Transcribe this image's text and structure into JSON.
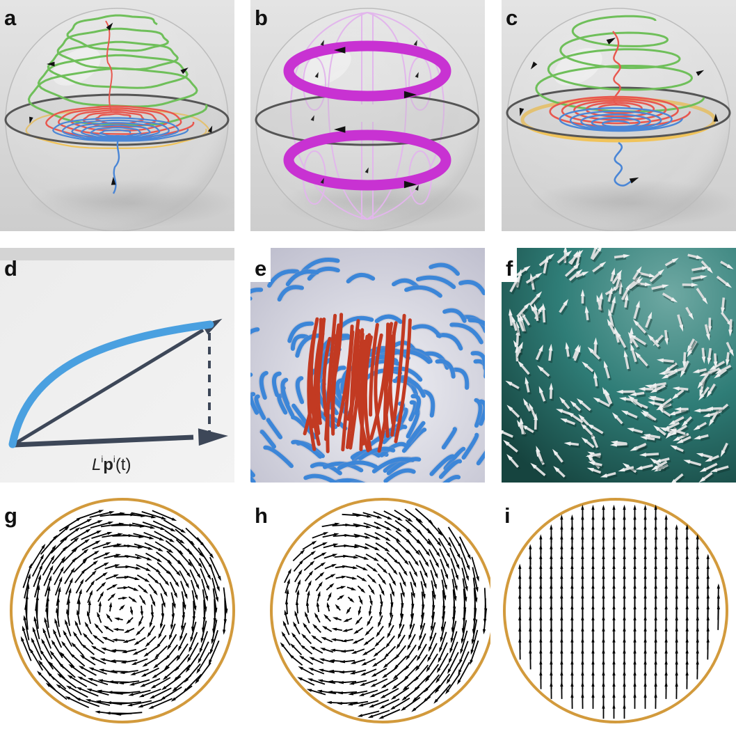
{
  "figure": {
    "panels": [
      {
        "id": "a",
        "label": "a",
        "kind": "sphere-trajectories"
      },
      {
        "id": "b",
        "label": "b",
        "kind": "sphere-vortex-rings"
      },
      {
        "id": "c",
        "label": "c",
        "kind": "sphere-helices"
      },
      {
        "id": "d",
        "label": "d",
        "kind": "vector-diagram",
        "caption": {
          "symbol": "L",
          "sup1": "i",
          "bold": "p",
          "sup2": "i",
          "arg": "(t)"
        }
      },
      {
        "id": "e",
        "label": "e",
        "kind": "filament-render"
      },
      {
        "id": "f",
        "label": "f",
        "kind": "arrow-render"
      },
      {
        "id": "g",
        "label": "g",
        "kind": "vector-field",
        "pattern": "vortex"
      },
      {
        "id": "h",
        "label": "h",
        "kind": "vector-field",
        "pattern": "off-center-vortex"
      },
      {
        "id": "i",
        "label": "i",
        "kind": "vector-field",
        "pattern": "uniform-upward"
      }
    ],
    "colors": {
      "render_background": "#d8d8d8",
      "green": "#6fbf5a",
      "red": "#e8574e",
      "blue": "#4a86d6",
      "yellow": "#f0c35a",
      "magenta": "#c832d2",
      "lilac": "#e2b6ec",
      "filament_blue": "#3c86d8",
      "filament_red": "#c23a22",
      "teal": "#2f7d77",
      "disc_rim": "#d29a3c",
      "arrow_dark": "#3d4758",
      "curve_blue": "#4aa0e0"
    }
  }
}
